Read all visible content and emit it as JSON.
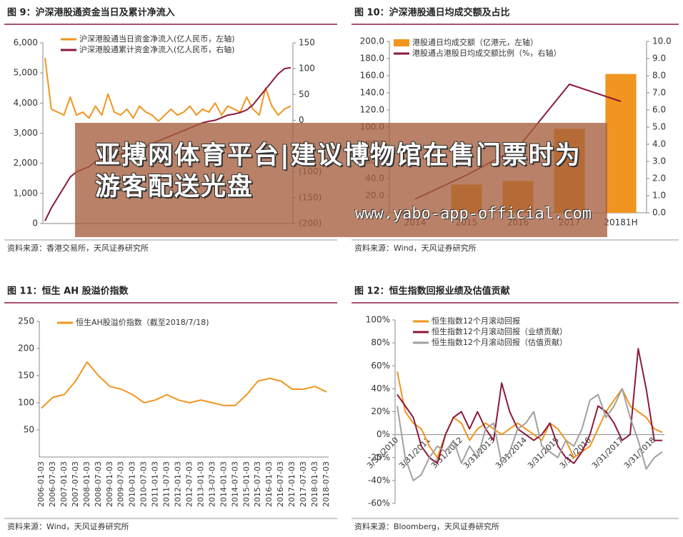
{
  "chart_data": [
    {
      "type": "line",
      "title": "图 9：沪深港股通资金当日及累计净流入",
      "source": "资料来源：香港交易所，天风证券研究所",
      "legend": "upper left",
      "ylim": [
        0,
        6000
      ],
      "yticks": [
        0,
        {
          "value": 1000,
          "label": "1,000"
        },
        {
          "value": 2000,
          "label": "2,000"
        },
        {
          "value": 3000,
          "label": "3,000"
        },
        {
          "value": 4000,
          "label": "4,000"
        },
        {
          "value": 5000,
          "label": "5,000"
        },
        {
          "value": 6000,
          "label": "6,000"
        }
      ],
      "y2lim": [
        -200,
        150
      ],
      "y2ticks": [
        {
          "value": -200,
          "label": "(200)"
        },
        {
          "value": -150,
          "label": "(150)"
        },
        {
          "value": -100,
          "label": "(100)"
        },
        {
          "value": -50,
          "label": "(50)"
        },
        0,
        50,
        100,
        150
      ],
      "series": [
        {
          "name": "沪深港股通当日资金净流入(亿人民币，左轴)",
          "color": "#f0951f",
          "values": [
            5500,
            3800,
            3700,
            3600,
            4200,
            3600,
            3700,
            3500,
            3900,
            3600,
            4300,
            3700,
            3600,
            3800,
            3500,
            3900,
            3700,
            3600,
            3400,
            3600,
            3800,
            3600,
            3700,
            3900,
            3600,
            3800,
            3700,
            4000,
            3600,
            3900,
            3800,
            3700,
            4200,
            3800,
            3600,
            4500,
            3900,
            3600,
            3800,
            3900
          ]
        },
        {
          "name": "沪深港股通累计资金净流入(亿人民币，右轴)",
          "color": "#8b1a3a",
          "axis": "y2",
          "values": [
            -195,
            -170,
            -150,
            -130,
            -110,
            -100,
            -95,
            -90,
            -80,
            -75,
            -70,
            -70,
            -65,
            -60,
            -60,
            -55,
            -50,
            -45,
            -40,
            -35,
            -30,
            -25,
            -20,
            -15,
            -10,
            -5,
            -2,
            0,
            5,
            10,
            12,
            15,
            20,
            30,
            45,
            60,
            75,
            90,
            100,
            102
          ]
        }
      ]
    },
    {
      "type": "bar",
      "title": "图 10：沪深港股通日均成交额及占比",
      "source": "资料来源：Wind，天风证券研究所",
      "legend": "upper left",
      "categories": [
        "2014",
        "2015",
        "2016",
        "2017",
        "20181H"
      ],
      "ylim": [
        0,
        200
      ],
      "yticks": [
        {
          "value": 0,
          "label": "0.0"
        },
        {
          "value": 20,
          "label": "20.0"
        },
        {
          "value": 40,
          "label": "40.0"
        },
        {
          "value": 60,
          "label": "60.0"
        },
        {
          "value": 80,
          "label": "80.0"
        },
        {
          "value": 100,
          "label": "100.0"
        },
        {
          "value": 120,
          "label": "120.0"
        },
        {
          "value": 140,
          "label": "140.0"
        },
        {
          "value": 160,
          "label": "160.0"
        },
        {
          "value": 180,
          "label": "180.0"
        },
        {
          "value": 200,
          "label": "200.0"
        }
      ],
      "y2lim": [
        0,
        10
      ],
      "y2ticks": [
        {
          "value": 0,
          "label": "0.0"
        },
        {
          "value": 1,
          "label": "1.0"
        },
        {
          "value": 2,
          "label": "2.0"
        },
        {
          "value": 3,
          "label": "3.0"
        },
        {
          "value": 4,
          "label": "4.0"
        },
        {
          "value": 5,
          "label": "5.0"
        },
        {
          "value": 6,
          "label": "6.0"
        },
        {
          "value": 7,
          "label": "7.0"
        },
        {
          "value": 8,
          "label": "8.0"
        },
        {
          "value": 9,
          "label": "9.0"
        },
        {
          "value": 10,
          "label": "10.0"
        }
      ],
      "series": [
        {
          "name": "港股通日均成交额（亿港元，左轴）",
          "color": "#f0951f",
          "values": [
            3,
            33,
            37,
            98,
            162
          ]
        },
        {
          "name": "港股通占港股日均成交额比例（%，右轴）",
          "color": "#8b1a3a",
          "axis": "y2",
          "type": "line",
          "values": [
            0.8,
            2.2,
            3.8,
            7.5,
            6.5
          ]
        }
      ]
    },
    {
      "type": "line",
      "title": "图 11：恒生 AH 股溢价指数",
      "source": "资料来源：Wind，天风证券研究所",
      "legend": "upper left",
      "categories": [
        "2006-01-03",
        "2006-07-03",
        "2007-01-03",
        "2007-07-03",
        "2008-01-03",
        "2008-07-03",
        "2009-01-03",
        "2009-07-03",
        "2010-01-03",
        "2010-07-03",
        "2011-01-03",
        "2011-07-03",
        "2012-01-03",
        "2012-07-03",
        "2013-01-03",
        "2013-07-03",
        "2014-01-03",
        "2014-07-03",
        "2015-01-03",
        "2015-07-03",
        "2016-01-03",
        "2016-07-03",
        "2017-01-03",
        "2017-07-03",
        "2018-01-03",
        "2018-07-03"
      ],
      "ylim": [
        0,
        250
      ],
      "yticks": [
        50,
        100,
        150,
        200,
        250
      ],
      "series": [
        {
          "name": "恒生AH股溢价指数（截至2018/7/18)",
          "color": "#f0951f",
          "values": [
            90,
            110,
            115,
            140,
            175,
            150,
            130,
            125,
            115,
            100,
            105,
            115,
            105,
            100,
            105,
            100,
            95,
            95,
            115,
            140,
            145,
            140,
            125,
            125,
            130,
            120
          ]
        }
      ]
    },
    {
      "type": "line",
      "title": "图 12：恒生指数回报业绩及估值贡献",
      "source": "资料来源：Bloomberg，天风证券研究所",
      "legend": "upper left",
      "categories": [
        "3/31/2010",
        null,
        null,
        null,
        "3/31/2011",
        null,
        null,
        null,
        "3/31/2012",
        null,
        null,
        null,
        "3/31/2013",
        null,
        null,
        null,
        "3/31/2014",
        null,
        null,
        null,
        "3/31/2015",
        null,
        null,
        null,
        "3/31/2016",
        null,
        null,
        null,
        "3/31/2017",
        null,
        null,
        null,
        "3/31/2018",
        null
      ],
      "ylim": [
        -60,
        100
      ],
      "yticks": [
        {
          "value": -60,
          "label": "-60%"
        },
        {
          "value": -40,
          "label": "-40%"
        },
        {
          "value": -20,
          "label": "-20%"
        },
        {
          "value": 0,
          "label": "0%"
        },
        {
          "value": 20,
          "label": "20%"
        },
        {
          "value": 40,
          "label": "40%"
        },
        {
          "value": 60,
          "label": "60%"
        },
        {
          "value": 80,
          "label": "80%"
        },
        {
          "value": 100,
          "label": "100%"
        }
      ],
      "series": [
        {
          "name": "恒生指数12个月滚动回报",
          "color": "#f0951f",
          "values": [
            55,
            20,
            10,
            5,
            -10,
            -20,
            0,
            15,
            10,
            -5,
            5,
            10,
            5,
            0,
            5,
            10,
            5,
            0,
            -5,
            10,
            5,
            -5,
            -20,
            -15,
            -10,
            5,
            20,
            30,
            40,
            25,
            20,
            15,
            5,
            2
          ]
        },
        {
          "name": "恒生指数12个月滚动回报（业绩贡献）",
          "color": "#8b1a3a",
          "values": [
            35,
            25,
            15,
            -10,
            -20,
            -25,
            0,
            15,
            20,
            5,
            20,
            5,
            -5,
            45,
            20,
            5,
            0,
            -5,
            0,
            10,
            -10,
            -20,
            -25,
            -15,
            0,
            25,
            20,
            10,
            -5,
            0,
            75,
            40,
            -5,
            -5
          ]
        },
        {
          "name": "恒生指数12个月滚动回报（估值贡献）",
          "color": "#a0a0a0",
          "values": [
            25,
            -20,
            -40,
            -35,
            -20,
            -10,
            -15,
            -5,
            -25,
            -10,
            -20,
            5,
            10,
            -25,
            -15,
            5,
            10,
            20,
            -10,
            -15,
            -20,
            -5,
            -10,
            5,
            30,
            35,
            15,
            25,
            40,
            15,
            -5,
            -30,
            -20,
            -15
          ]
        }
      ]
    }
  ],
  "overlay": {
    "title": "亚搏网体育平台|建议博物馆在售门票时为游客配送光盘",
    "url": "www.yabo-app-official.com"
  }
}
